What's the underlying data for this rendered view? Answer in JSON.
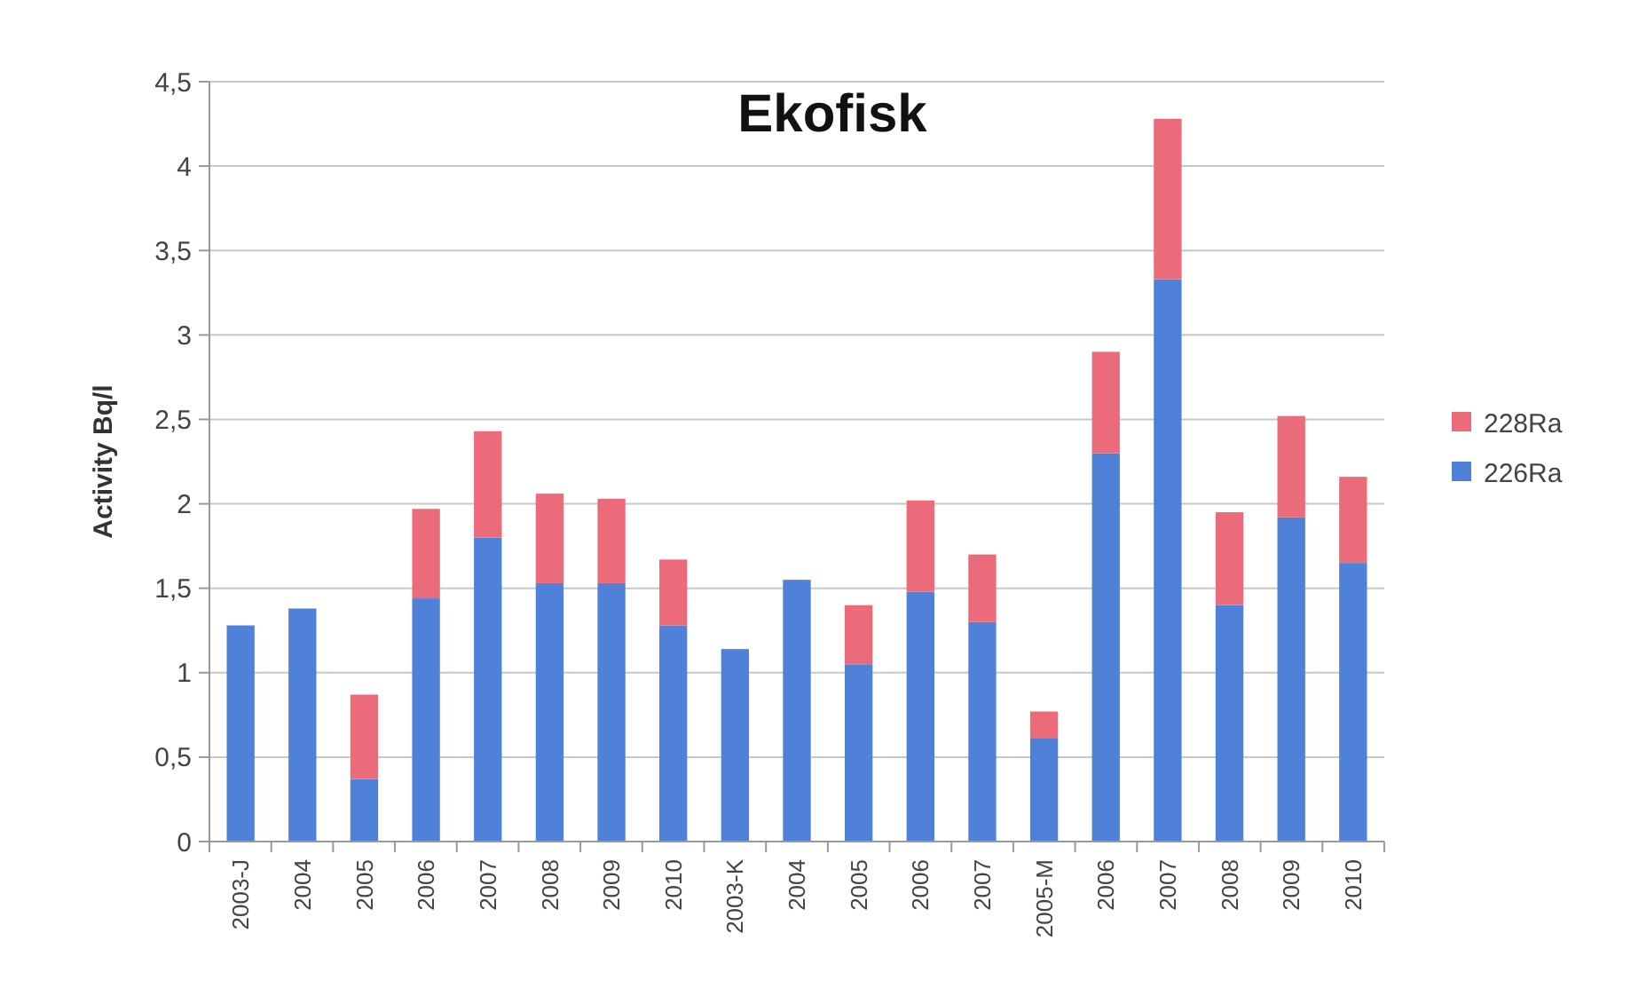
{
  "chart_data": {
    "type": "bar",
    "title": "Ekofisk",
    "ylabel": "Activity Bq/l",
    "stacked": true,
    "legend": "right",
    "grid": "y",
    "categories": [
      "2003-J",
      "2004",
      "2005",
      "2006",
      "2007",
      "2008",
      "2009",
      "2010",
      "2003-K",
      "2004",
      "2005",
      "2006",
      "2007",
      "2005-M",
      "2006",
      "2007",
      "2008",
      "2009",
      "2010"
    ],
    "series": [
      {
        "name": "226Ra",
        "color": "#4f81d9",
        "values": [
          1.28,
          1.38,
          0.37,
          1.44,
          1.8,
          1.53,
          1.53,
          1.28,
          1.14,
          1.55,
          1.05,
          1.48,
          1.3,
          0.61,
          2.3,
          3.33,
          1.4,
          1.92,
          1.65
        ]
      },
      {
        "name": "228Ra",
        "color": "#ec6b7a",
        "values": [
          null,
          null,
          0.5,
          0.53,
          0.63,
          0.53,
          0.5,
          0.39,
          null,
          null,
          0.35,
          0.54,
          0.4,
          0.16,
          0.6,
          0.95,
          0.55,
          0.6,
          0.51
        ]
      }
    ],
    "ylim": [
      0,
      4.5
    ],
    "yticks": [
      0,
      {
        "value": 0.5,
        "label": "0,5"
      },
      1,
      {
        "value": 1.5,
        "label": "1,5"
      },
      2,
      {
        "value": 2.5,
        "label": "2,5"
      },
      3,
      {
        "value": 3.5,
        "label": "3,5"
      },
      4,
      {
        "value": 4.5,
        "label": "4,5"
      }
    ]
  }
}
